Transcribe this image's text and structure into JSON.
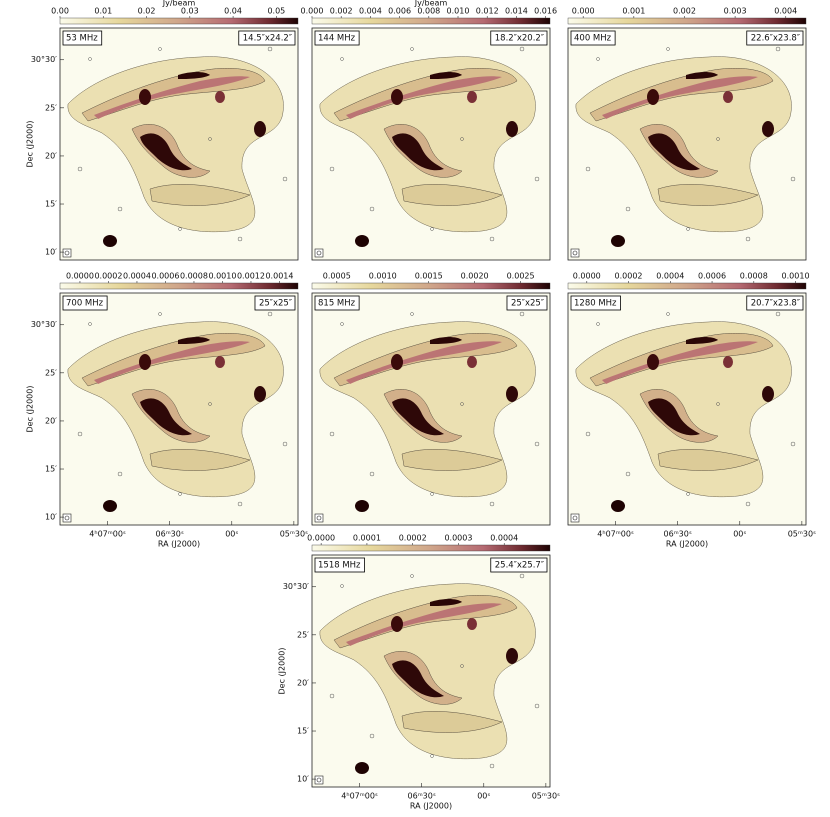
{
  "chart_data": [
    {
      "type": "image",
      "label": "53 MHz",
      "beam": "14.5″x24.2″",
      "colorbar": {
        "label": "Jy/beam",
        "lim": [
          0,
          0.055
        ],
        "ticks": [
          {
            "value": 0,
            "label": "0.00"
          },
          0.01,
          0.02,
          0.03,
          0.04,
          0.05
        ]
      },
      "ylabel": "Dec (J2000)",
      "ylim": [
        30.153,
        30.555
      ],
      "yticks": [
        {
          "value": 30.5,
          "label": "30°30′"
        },
        {
          "value": 30.4167,
          "label": "25′"
        },
        {
          "value": 30.3333,
          "label": "20′"
        },
        {
          "value": 30.25,
          "label": "15′"
        },
        {
          "value": 30.1667,
          "label": "10′"
        }
      ]
    },
    {
      "type": "image",
      "label": "144 MHz",
      "beam": "18.2″x20.2″",
      "colorbar": {
        "label": "Jy/beam",
        "lim": [
          0,
          0.0163
        ],
        "ticks": [
          {
            "value": 0,
            "label": "0.000"
          },
          0.002,
          0.004,
          0.006,
          0.008,
          {
            "value": 0.01,
            "label": "0.010"
          },
          0.012,
          0.014,
          0.016
        ]
      }
    },
    {
      "type": "image",
      "label": "400 MHz",
      "beam": "22.6″x23.8″",
      "colorbar": {
        "lim": [
          -0.0003,
          0.0044
        ],
        "ticks": [
          {
            "value": 0,
            "label": "0.000"
          },
          0.001,
          0.002,
          0.003,
          0.004
        ]
      }
    },
    {
      "type": "image",
      "label": "700 MHz",
      "beam": "25″x25″",
      "colorbar": {
        "lim": [
          -0.00014,
          0.00153
        ],
        "ticks": [
          {
            "value": 0,
            "label": "0.0000"
          },
          0.0002,
          0.0004,
          0.0006,
          0.0008,
          {
            "value": 0.001,
            "label": "0.0010"
          },
          0.0012,
          0.0014
        ]
      },
      "ylabel": "Dec (J2000)",
      "ylim": [
        30.153,
        30.555
      ],
      "yticks": [
        {
          "value": 30.5,
          "label": "30°30′"
        },
        {
          "value": 30.4167,
          "label": "25′"
        },
        {
          "value": 30.3333,
          "label": "20′"
        },
        {
          "value": 30.25,
          "label": "15′"
        },
        {
          "value": 30.1667,
          "label": "10′"
        }
      ],
      "xlabel": "RA (J2000)",
      "xlim": [
        14843,
        14728
      ],
      "xticks": [
        {
          "value": 14820,
          "label": "4ʰ07ᵐ00ˢ"
        },
        {
          "value": 14790,
          "label": "06ᵐ30ˢ"
        },
        {
          "value": 14760,
          "label": "00ˢ"
        },
        {
          "value": 14730,
          "label": "05ᵐ30ˢ"
        }
      ]
    },
    {
      "type": "image",
      "label": "815 MHz",
      "beam": "25″x25″",
      "colorbar": {
        "lim": [
          0.00023,
          0.00282
        ],
        "ticks": [
          0.0005,
          {
            "value": 0.001,
            "label": "0.0010"
          },
          0.0015,
          {
            "value": 0.002,
            "label": "0.0020"
          },
          0.0025
        ]
      }
    },
    {
      "type": "image",
      "label": "1280 MHz",
      "beam": "20.7″x23.8″",
      "colorbar": {
        "lim": [
          -9e-05,
          0.00105
        ],
        "ticks": [
          {
            "value": 0,
            "label": "0.0000"
          },
          0.0002,
          0.0004,
          0.0006,
          0.0008,
          {
            "value": 0.001,
            "label": "0.0010"
          }
        ]
      },
      "xlabel": "RA (J2000)",
      "xlim": [
        14843,
        14728
      ],
      "xticks": [
        {
          "value": 14820,
          "label": "4ʰ07ᵐ00ˢ"
        },
        {
          "value": 14790,
          "label": "06ᵐ30ˢ"
        },
        {
          "value": 14760,
          "label": "00ˢ"
        },
        {
          "value": 14730,
          "label": "05ᵐ30ˢ"
        }
      ]
    },
    {
      "type": "image",
      "label": "1518 MHz",
      "beam": "25.4″x25.7″",
      "colorbar": {
        "lim": [
          -2e-05,
          0.0005
        ],
        "ticks": [
          {
            "value": 0,
            "label": "0.0000"
          },
          0.0001,
          0.0002,
          0.0003,
          0.0004
        ]
      },
      "ylabel": "Dec (J2000)",
      "ylim": [
        30.153,
        30.555
      ],
      "yticks": [
        {
          "value": 30.5,
          "label": "30°30′"
        },
        {
          "value": 30.4167,
          "label": "25′"
        },
        {
          "value": 30.3333,
          "label": "20′"
        },
        {
          "value": 30.25,
          "label": "15′"
        },
        {
          "value": 30.1667,
          "label": "10′"
        }
      ],
      "xlabel": "RA (J2000)",
      "xlim": [
        14843,
        14728
      ],
      "xticks": [
        {
          "value": 14820,
          "label": "4ʰ07ᵐ00ˢ"
        },
        {
          "value": 14790,
          "label": "06ᵐ30ˢ"
        },
        {
          "value": 14760,
          "label": "00ˢ"
        },
        {
          "value": 14730,
          "label": "05ᵐ30ˢ"
        }
      ]
    }
  ]
}
